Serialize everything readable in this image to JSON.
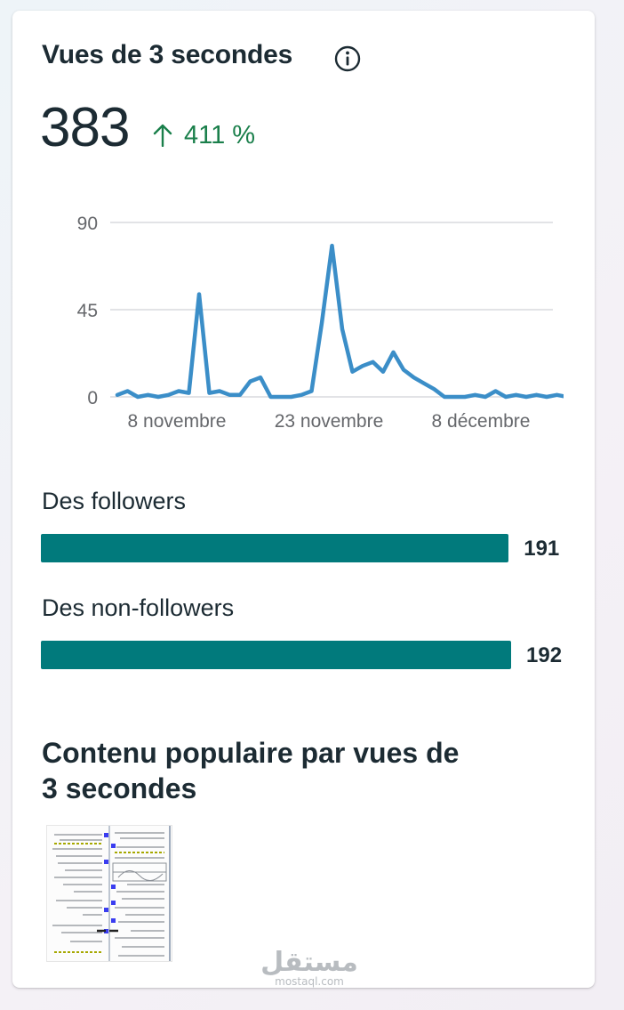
{
  "metric": {
    "title": "Vues de 3 secondes",
    "value": "383",
    "growth": "411 %",
    "info_icon": "info-circle-icon",
    "arrow_icon": "arrow-up-icon",
    "growth_color": "#1a7f4b"
  },
  "chart_data": {
    "type": "line",
    "y_ticks": [
      "0",
      "45",
      "90"
    ],
    "ylim": [
      0,
      90
    ],
    "x_ticks": [
      "8 novembre",
      "23 novembre",
      "8 décembre"
    ],
    "grid": true,
    "line_color": "#3b8ec8",
    "series": [
      {
        "values": [
          1,
          3,
          0,
          1,
          0,
          1,
          3,
          2,
          53,
          2,
          3,
          1,
          1,
          8,
          10,
          0,
          0,
          0,
          1,
          3,
          38,
          78,
          35,
          13,
          16,
          18,
          13,
          23,
          14,
          10,
          7,
          4,
          0,
          0,
          0,
          1,
          0,
          3,
          0,
          1,
          0,
          1,
          0,
          1,
          0
        ]
      }
    ]
  },
  "breakdown": {
    "followers": {
      "label": "Des followers",
      "value": "191",
      "count": 191
    },
    "non_followers": {
      "label": "Des non-followers",
      "value": "192",
      "count": 192
    },
    "bar_color": "#017a7c"
  },
  "popular": {
    "title_line1": "Contenu populaire par vues de",
    "title_line2": "3 secondes",
    "thumbnail_icon": "document-thumbnail-icon"
  },
  "watermark": {
    "main": "مستقل",
    "sub": "mostaql.com"
  }
}
